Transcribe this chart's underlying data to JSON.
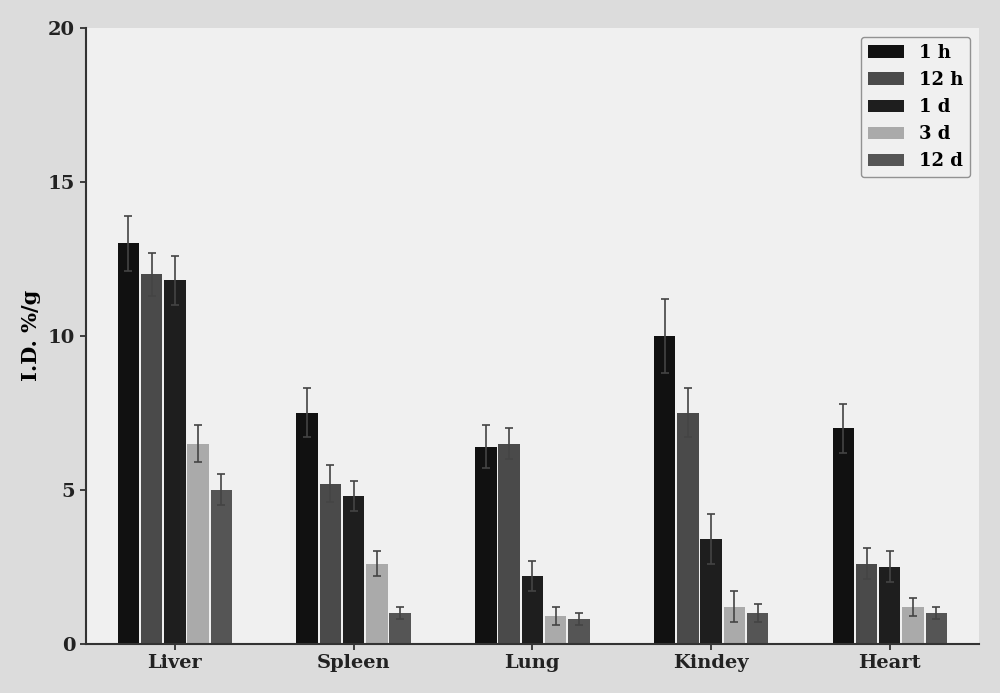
{
  "categories": [
    "Liver",
    "Spleen",
    "Lung",
    "Kindey",
    "Heart"
  ],
  "series_labels": [
    "1 h",
    "12 h",
    "1 d",
    "3 d",
    "12 d"
  ],
  "colors": [
    "#111111",
    "#4a4a4a",
    "#1e1e1e",
    "#aaaaaa",
    "#555555"
  ],
  "values": [
    [
      13.0,
      7.5,
      6.4,
      10.0,
      7.0
    ],
    [
      12.0,
      5.2,
      6.5,
      7.5,
      2.6
    ],
    [
      11.8,
      4.8,
      2.2,
      3.4,
      2.5
    ],
    [
      6.5,
      2.6,
      0.9,
      1.2,
      1.2
    ],
    [
      5.0,
      1.0,
      0.8,
      1.0,
      1.0
    ]
  ],
  "errors": [
    [
      0.9,
      0.8,
      0.7,
      1.2,
      0.8
    ],
    [
      0.7,
      0.6,
      0.5,
      0.8,
      0.5
    ],
    [
      0.8,
      0.5,
      0.5,
      0.8,
      0.5
    ],
    [
      0.6,
      0.4,
      0.3,
      0.5,
      0.3
    ],
    [
      0.5,
      0.2,
      0.2,
      0.3,
      0.2
    ]
  ],
  "ylabel": "I.D. %/g",
  "ylim": [
    0,
    20
  ],
  "yticks": [
    0,
    5,
    10,
    15,
    20
  ],
  "background_color": "#dcdcdc",
  "plot_background": "#f0f0f0",
  "bar_width": 0.13,
  "axis_fontsize": 15,
  "tick_fontsize": 14,
  "legend_fontsize": 13
}
